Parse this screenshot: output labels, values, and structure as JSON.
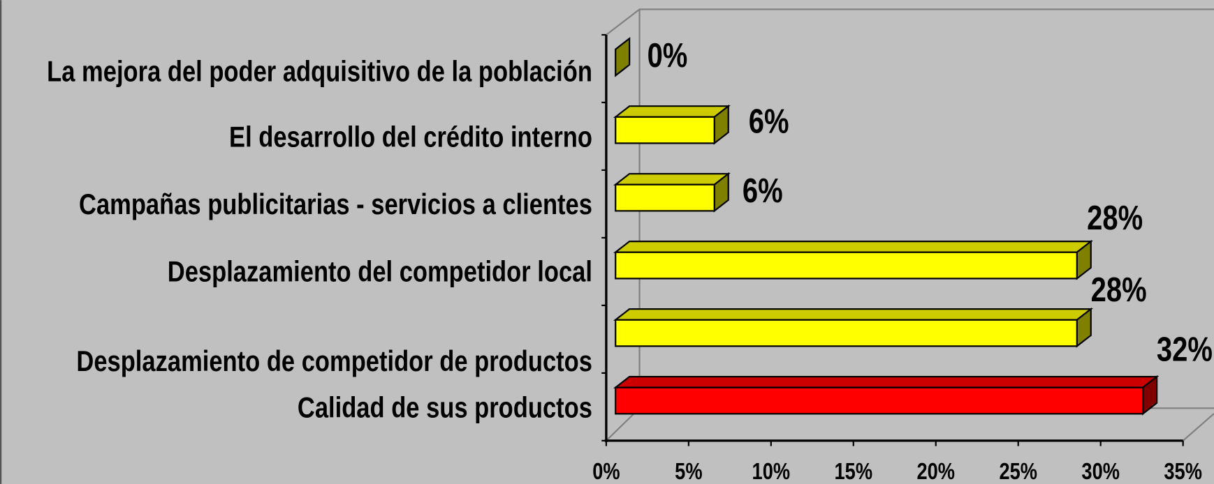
{
  "chart_data": {
    "type": "bar3d_horizontal",
    "categories": [
      "La mejora del poder adquisitivo de la población",
      "El desarrollo del crédito interno",
      "Campañas publicitarias - servicios a clientes",
      "Desplazamiento del competidor local",
      "Desplazamiento de competidor de productos",
      "Calidad de sus productos"
    ],
    "values": [
      0,
      6,
      6,
      28,
      28,
      32
    ],
    "value_labels": [
      "0%",
      "6%",
      "6%",
      "28%",
      "28%",
      "32%"
    ],
    "colors": [
      "#ffff00",
      "#ffff00",
      "#ffff00",
      "#ffff00",
      "#ffff00",
      "#ff0000"
    ],
    "xlim": [
      0,
      35
    ],
    "xticks": [
      {
        "value": 0,
        "label": "0%"
      },
      {
        "value": 5,
        "label": "5%"
      },
      {
        "value": 10,
        "label": "10%"
      },
      {
        "value": 15,
        "label": "15%"
      },
      {
        "value": 20,
        "label": "20%"
      },
      {
        "value": 25,
        "label": "25%"
      },
      {
        "value": 30,
        "label": "30%"
      },
      {
        "value": 35,
        "label": "35%"
      }
    ]
  }
}
